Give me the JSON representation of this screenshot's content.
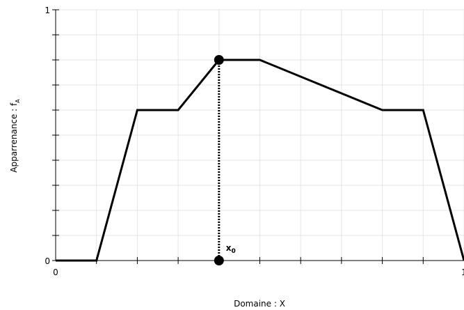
{
  "chart_data": {
    "type": "line",
    "title": "",
    "xlabel": "Domaine : X",
    "ylabel_main": "Apparrenance : f",
    "ylabel_sub": "A",
    "xlim": [
      0,
      10
    ],
    "ylim": [
      0,
      1
    ],
    "x_tick_labels": [
      "0",
      "1"
    ],
    "y_tick_labels": [
      "0",
      "1"
    ],
    "grid": true,
    "series": [
      {
        "x": [
          0,
          1,
          2,
          3,
          4,
          5,
          8,
          9,
          10
        ],
        "y": [
          0,
          0,
          0.6,
          0.6,
          0.8,
          0.8,
          0.6,
          0.6,
          0
        ]
      }
    ],
    "annotation": {
      "main": "x",
      "sub": "0",
      "x": 4,
      "y": 0.8
    }
  }
}
